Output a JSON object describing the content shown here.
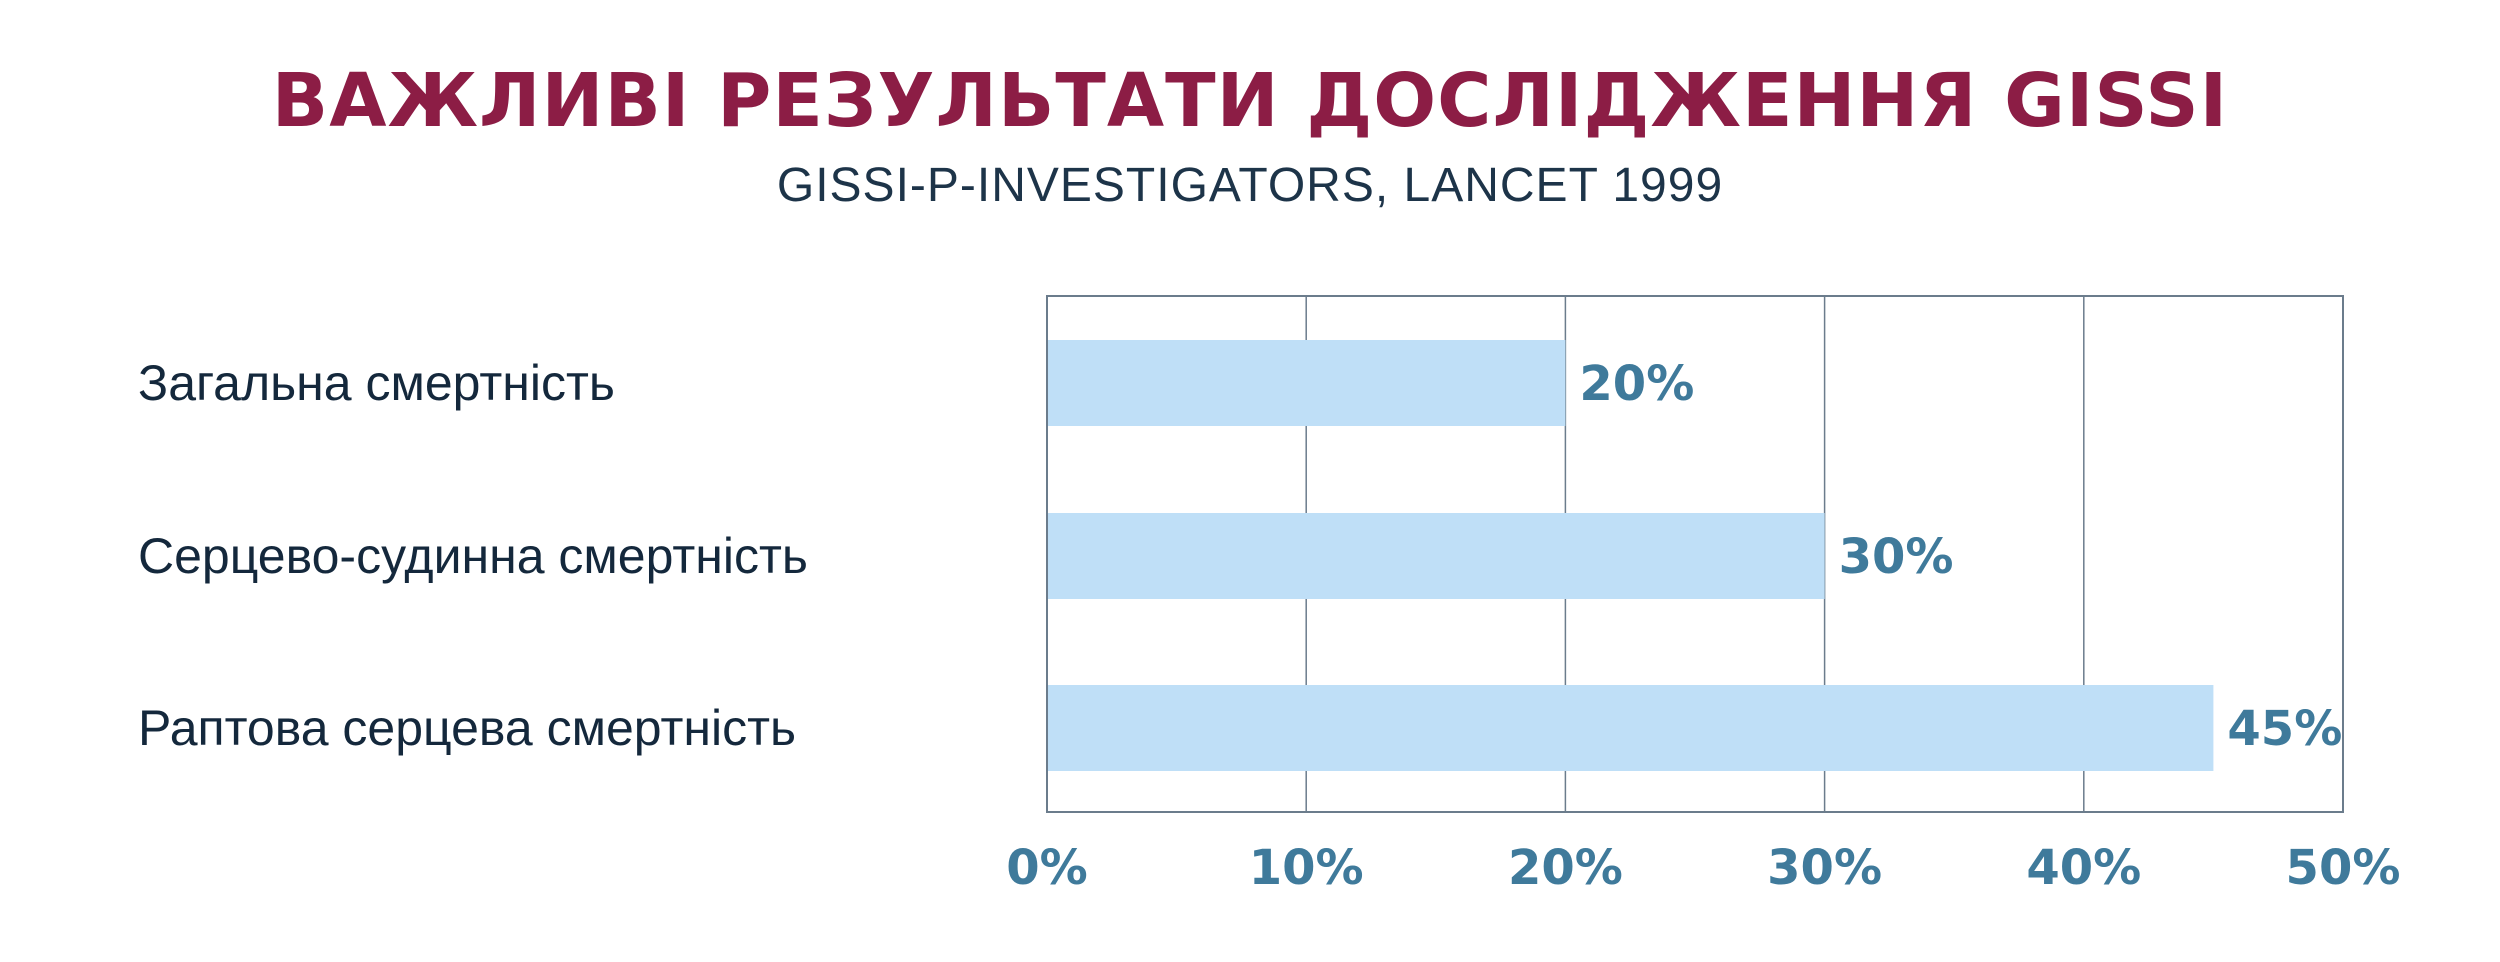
{
  "header": {
    "title": "ВАЖЛИВІ РЕЗУЛЬТАТИ ДОСЛІДЖЕННЯ GISSI",
    "subtitle": "GISSI-P-INVESTIGATORS, LANCET 1999"
  },
  "colors": {
    "title": "#8c1d45",
    "subtitle": "#1d3449",
    "bar_fill": "#bfdff7",
    "value_labels": "#3f7a9b",
    "grid": "#6b7c8c",
    "category_text": "#14283c"
  },
  "chart_data": {
    "type": "bar",
    "orientation": "horizontal",
    "title": "ВАЖЛИВІ РЕЗУЛЬТАТИ ДОСЛІДЖЕННЯ GISSI",
    "subtitle": "GISSI-P-INVESTIGATORS, LANCET 1999",
    "categories": [
      "Загальна смертність",
      "Серцево-судинна смертність",
      "Раптова серцева смертність"
    ],
    "values": [
      20,
      30,
      45
    ],
    "value_labels": [
      "20%",
      "30%",
      "45%"
    ],
    "xlim": [
      0,
      50
    ],
    "x_ticks": [
      0,
      10,
      20,
      30,
      40,
      50
    ],
    "x_tick_labels": [
      "0%",
      "10%",
      "20%",
      "30%",
      "40%",
      "50%"
    ],
    "xlabel": "",
    "ylabel": "",
    "grid": "vertical",
    "legend": "none"
  }
}
